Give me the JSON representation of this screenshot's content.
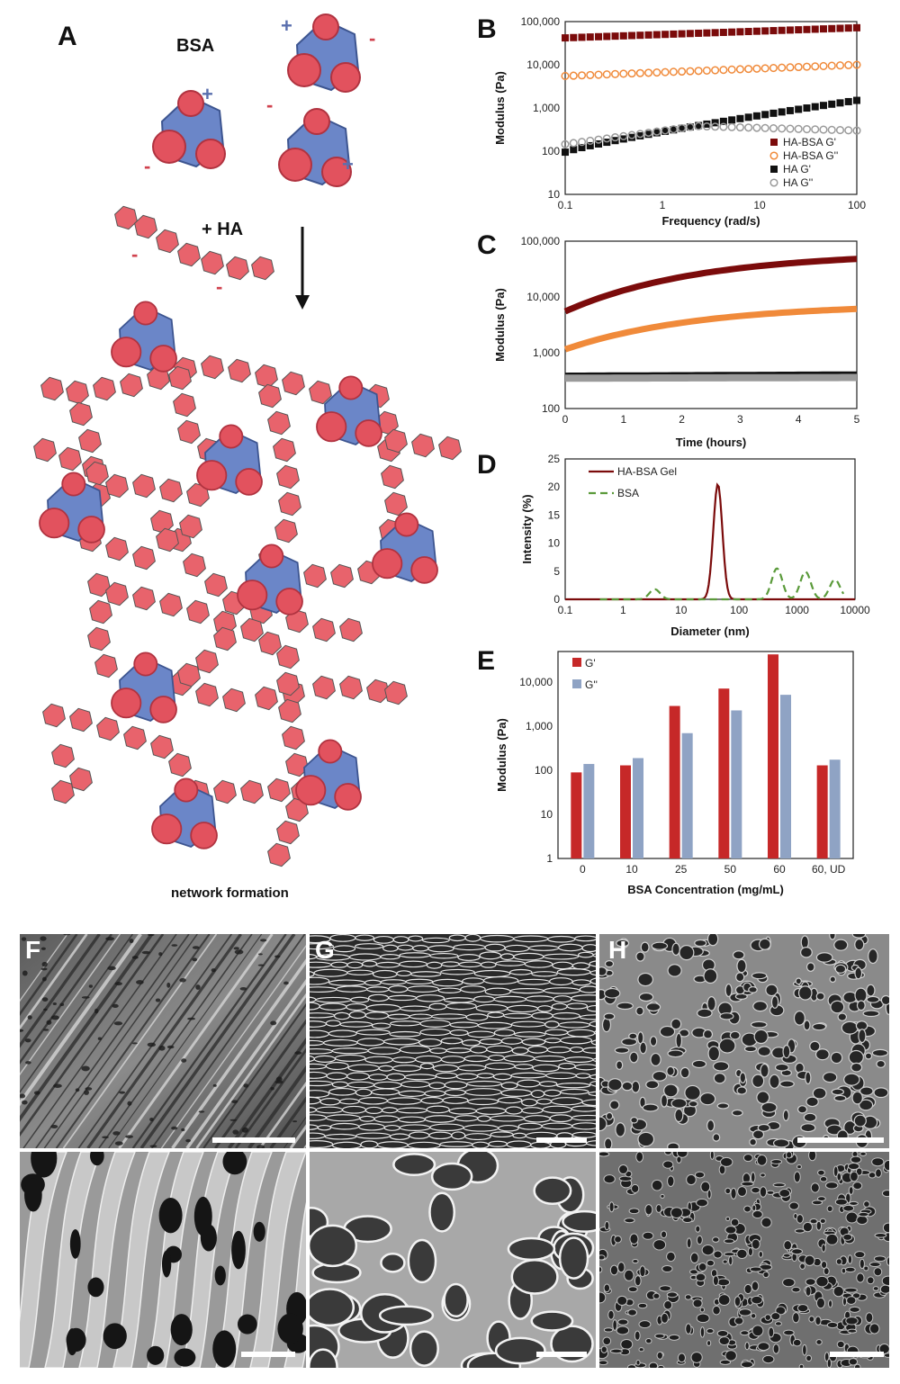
{
  "panel_a": {
    "letter": "A",
    "bsa_label": "BSA",
    "ha_label": "+ HA",
    "caption": "network formation",
    "plus": "+",
    "minus": "-"
  },
  "colors": {
    "dark_red": "#7b0b0b",
    "orange": "#f08a3a",
    "black": "#111111",
    "gray": "#9a9a9a",
    "green": "#5a9a3a",
    "bar_red": "#c62828",
    "bar_blue": "#8fa3c4",
    "pink": "#e8636c",
    "protein_blue": "#6b86c8",
    "protein_red": "#e2525e"
  },
  "sem_panels": [
    {
      "letter": "F"
    },
    {
      "letter": "G"
    },
    {
      "letter": "H"
    }
  ],
  "chart_data": [
    {
      "panel": "B",
      "type": "scatter",
      "xlabel": "Frequency (rad/s)",
      "ylabel": "Modulus (Pa)",
      "xscale": "log",
      "yscale": "log",
      "xlim": [
        0.1,
        100
      ],
      "ylim": [
        10,
        100000
      ],
      "xticks": [
        "0.1",
        "1",
        "10",
        "100"
      ],
      "yticks": [
        "10",
        "100",
        "1,000",
        "10,000",
        "100,000"
      ],
      "legend_position": "bottom-right",
      "series": [
        {
          "name": "HA-BSA G'",
          "marker": "filled-square",
          "color": "#7b0b0b",
          "x_range": [
            0.1,
            100
          ],
          "y_range": [
            42000,
            72000
          ]
        },
        {
          "name": "HA-BSA G''",
          "marker": "open-circle",
          "color": "#f08a3a",
          "x_range": [
            0.1,
            100
          ],
          "y_range": [
            5500,
            10000
          ]
        },
        {
          "name": "HA G'",
          "marker": "filled-square",
          "color": "#111111",
          "x_range": [
            0.1,
            100
          ],
          "y_range": [
            95,
            1500
          ]
        },
        {
          "name": "HA G''",
          "marker": "open-circle",
          "color": "#9a9a9a",
          "x_range": [
            0.1,
            100
          ],
          "y_range": [
            145,
            300
          ],
          "peak": 380
        }
      ]
    },
    {
      "panel": "C",
      "type": "line",
      "xlabel": "Time (hours)",
      "ylabel": "Modulus (Pa)",
      "yscale": "log",
      "xlim": [
        0,
        5
      ],
      "ylim": [
        100,
        100000
      ],
      "xticks": [
        "0",
        "1",
        "2",
        "3",
        "4",
        "5"
      ],
      "yticks": [
        "100",
        "1,000",
        "10,000",
        "100,000"
      ],
      "series": [
        {
          "color": "#7b0b0b",
          "x_range": [
            0,
            5
          ],
          "y_range": [
            5500,
            48000
          ]
        },
        {
          "color": "#f08a3a",
          "x_range": [
            0,
            5
          ],
          "y_range": [
            1150,
            6100
          ]
        },
        {
          "color": "#111111",
          "x_range": [
            0,
            5
          ],
          "y_range": [
            380,
            400
          ]
        },
        {
          "color": "#9a9a9a",
          "x_range": [
            0,
            5
          ],
          "y_range": [
            350,
            360
          ]
        }
      ]
    },
    {
      "panel": "D",
      "type": "line",
      "xlabel": "Diameter (nm)",
      "ylabel": "Intensity (%)",
      "xscale": "log",
      "xlim": [
        0.1,
        10000
      ],
      "ylim": [
        0,
        25
      ],
      "xticks": [
        "0.1",
        "1",
        "10",
        "100",
        "1000",
        "10000"
      ],
      "yticks": [
        "0",
        "5",
        "10",
        "15",
        "20",
        "25"
      ],
      "legend_position": "top-left",
      "series": [
        {
          "name": "HA-BSA Gel",
          "style": "solid",
          "color": "#7b0b0b",
          "peak_x": 43,
          "peak_y": 20.5
        },
        {
          "name": "BSA",
          "style": "dashed",
          "color": "#5a9a3a",
          "peaks": [
            [
              3.5,
              1.8
            ],
            [
              450,
              5.5
            ],
            [
              1400,
              4.9
            ],
            [
              4500,
              3.5
            ]
          ]
        }
      ]
    },
    {
      "panel": "E",
      "type": "bar",
      "xlabel": "BSA Concentration (mg/mL)",
      "ylabel": "Modulus (Pa)",
      "yscale": "log",
      "ylim": [
        1,
        50000
      ],
      "yticks": [
        "1",
        "10",
        "100",
        "1,000",
        "10,000"
      ],
      "categories": [
        "0",
        "10",
        "25",
        "50",
        "60",
        "60, UD"
      ],
      "legend_position": "top-left",
      "series": [
        {
          "name": "G'",
          "color": "#c62828",
          "values": [
            90,
            130,
            2900,
            7200,
            43000,
            130
          ]
        },
        {
          "name": "G''",
          "color": "#8fa3c4",
          "values": [
            140,
            190,
            700,
            2300,
            5200,
            175
          ]
        }
      ]
    }
  ]
}
